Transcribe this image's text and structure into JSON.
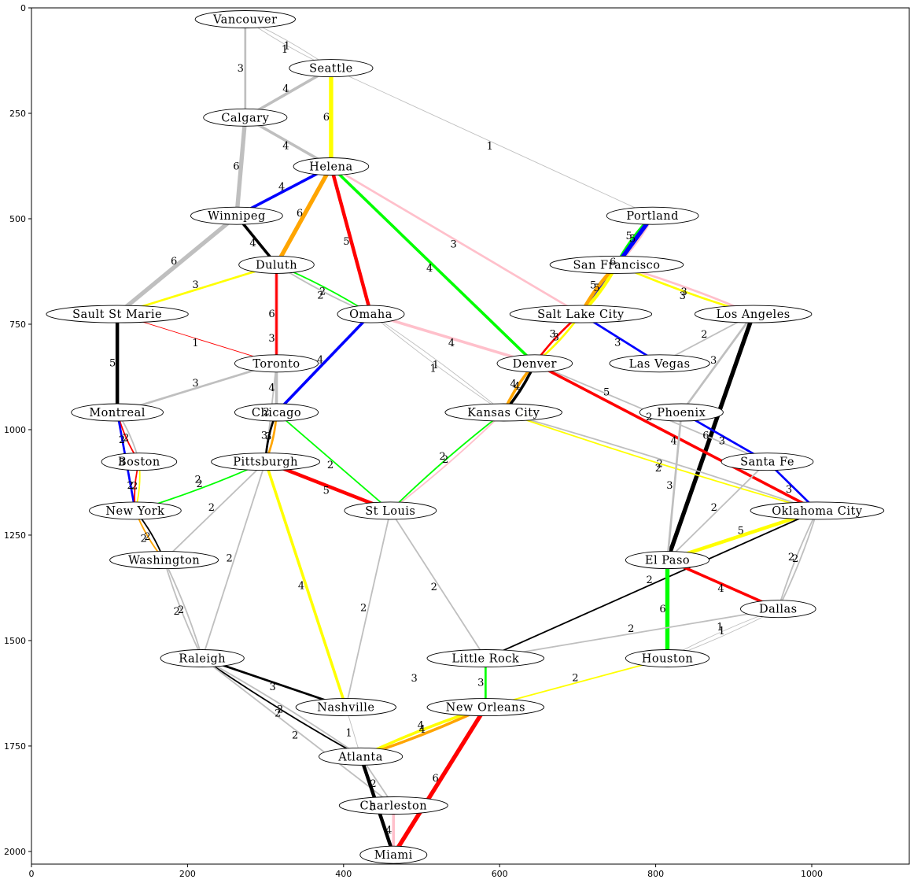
{
  "axes": {
    "xlim": [
      0,
      1125
    ],
    "ylim": [
      2030,
      0
    ],
    "xticks": [
      0,
      200,
      400,
      600,
      800,
      1000
    ],
    "yticks": [
      0,
      250,
      500,
      750,
      1000,
      1250,
      1500,
      1750,
      2000
    ]
  },
  "colors": {
    "gray": "#bfbfbf",
    "yellow": "#ffff00",
    "blue": "#0000ff",
    "orange": "#ffa500",
    "red": "#ff0000",
    "green": "#00ff00",
    "pink": "#ffc0cb",
    "black": "#000000"
  },
  "cities": [
    {
      "name": "Vancouver",
      "x": 274,
      "y": 27
    },
    {
      "name": "Seattle",
      "x": 384,
      "y": 143
    },
    {
      "name": "Calgary",
      "x": 274,
      "y": 260
    },
    {
      "name": "Helena",
      "x": 384,
      "y": 376
    },
    {
      "name": "Portland",
      "x": 796,
      "y": 493
    },
    {
      "name": "Winnipeg",
      "x": 263,
      "y": 493
    },
    {
      "name": "Duluth",
      "x": 314,
      "y": 609
    },
    {
      "name": "San Francisco",
      "x": 750,
      "y": 609
    },
    {
      "name": "Sault St Marie",
      "x": 110,
      "y": 726
    },
    {
      "name": "Omaha",
      "x": 435,
      "y": 726
    },
    {
      "name": "Salt Lake City",
      "x": 704,
      "y": 726
    },
    {
      "name": "Los Angeles",
      "x": 925,
      "y": 726
    },
    {
      "name": "Toronto",
      "x": 314,
      "y": 843
    },
    {
      "name": "Denver",
      "x": 645,
      "y": 843
    },
    {
      "name": "Las Vegas",
      "x": 805,
      "y": 843
    },
    {
      "name": "Montreal",
      "x": 110,
      "y": 959
    },
    {
      "name": "Chicago",
      "x": 314,
      "y": 959
    },
    {
      "name": "Kansas City",
      "x": 605,
      "y": 959
    },
    {
      "name": "Phoenix",
      "x": 833,
      "y": 959
    },
    {
      "name": "Boston",
      "x": 138,
      "y": 1076
    },
    {
      "name": "Pittsburgh",
      "x": 300,
      "y": 1076
    },
    {
      "name": "Santa Fe",
      "x": 943,
      "y": 1076
    },
    {
      "name": "New York",
      "x": 133,
      "y": 1192
    },
    {
      "name": "St Louis",
      "x": 460,
      "y": 1192
    },
    {
      "name": "Oklahoma City",
      "x": 1007,
      "y": 1192
    },
    {
      "name": "Washington",
      "x": 170,
      "y": 1309
    },
    {
      "name": "El Paso",
      "x": 815,
      "y": 1309
    },
    {
      "name": "Dallas",
      "x": 957,
      "y": 1425
    },
    {
      "name": "Raleigh",
      "x": 219,
      "y": 1542
    },
    {
      "name": "Little Rock",
      "x": 582,
      "y": 1542
    },
    {
      "name": "Houston",
      "x": 815,
      "y": 1542
    },
    {
      "name": "Nashville",
      "x": 403,
      "y": 1658
    },
    {
      "name": "New Orleans",
      "x": 582,
      "y": 1658
    },
    {
      "name": "Atlanta",
      "x": 422,
      "y": 1775
    },
    {
      "name": "Charleston",
      "x": 464,
      "y": 1891
    },
    {
      "name": "Miami",
      "x": 464,
      "y": 2008
    }
  ],
  "routes": [
    {
      "from": "Vancouver",
      "to": "Seattle",
      "color": "gray",
      "weight": "1"
    },
    {
      "from": "Vancouver",
      "to": "Seattle",
      "color": "gray",
      "weight": "1"
    },
    {
      "from": "Vancouver",
      "to": "Calgary",
      "color": "gray",
      "weight": "3"
    },
    {
      "from": "Seattle",
      "to": "Calgary",
      "color": "gray",
      "weight": "4"
    },
    {
      "from": "Seattle",
      "to": "Helena",
      "color": "yellow",
      "weight": "6"
    },
    {
      "from": "Seattle",
      "to": "Portland",
      "color": "gray",
      "weight": "1"
    },
    {
      "from": "Calgary",
      "to": "Helena",
      "color": "gray",
      "weight": "4"
    },
    {
      "from": "Calgary",
      "to": "Winnipeg",
      "color": "gray",
      "weight": "6"
    },
    {
      "from": "Helena",
      "to": "Winnipeg",
      "color": "blue",
      "weight": "4"
    },
    {
      "from": "Helena",
      "to": "Duluth",
      "color": "orange",
      "weight": "6"
    },
    {
      "from": "Helena",
      "to": "Omaha",
      "color": "red",
      "weight": "5"
    },
    {
      "from": "Helena",
      "to": "Denver",
      "color": "green",
      "weight": "4"
    },
    {
      "from": "Helena",
      "to": "Salt Lake City",
      "color": "pink",
      "weight": "3"
    },
    {
      "from": "Winnipeg",
      "to": "Duluth",
      "color": "black",
      "weight": "4"
    },
    {
      "from": "Winnipeg",
      "to": "Sault St Marie",
      "color": "gray",
      "weight": "6"
    },
    {
      "from": "Duluth",
      "to": "Sault St Marie",
      "color": "yellow",
      "weight": "3"
    },
    {
      "from": "Duluth",
      "to": "Toronto",
      "color": "pink",
      "weight": "6"
    },
    {
      "from": "Duluth",
      "to": "Omaha",
      "color": "green",
      "weight": "2"
    },
    {
      "from": "Duluth",
      "to": "Omaha",
      "color": "gray",
      "weight": "2"
    },
    {
      "from": "Duluth",
      "to": "Chicago",
      "color": "red",
      "weight": "3"
    },
    {
      "from": "Portland",
      "to": "San Francisco",
      "color": "pink",
      "weight": "5"
    },
    {
      "from": "Portland",
      "to": "San Francisco",
      "color": "green",
      "weight": "5"
    },
    {
      "from": "Portland",
      "to": "Salt Lake City",
      "color": "blue",
      "weight": "6"
    },
    {
      "from": "San Francisco",
      "to": "Salt Lake City",
      "color": "yellow",
      "weight": "5"
    },
    {
      "from": "San Francisco",
      "to": "Salt Lake City",
      "color": "orange",
      "weight": "5"
    },
    {
      "from": "San Francisco",
      "to": "Los Angeles",
      "color": "pink",
      "weight": "3"
    },
    {
      "from": "San Francisco",
      "to": "Los Angeles",
      "color": "yellow",
      "weight": "3"
    },
    {
      "from": "Sault St Marie",
      "to": "Toronto",
      "color": "red",
      "weight": "1"
    },
    {
      "from": "Sault St Marie",
      "to": "Montreal",
      "color": "black",
      "weight": "5"
    },
    {
      "from": "Omaha",
      "to": "Chicago",
      "color": "blue",
      "weight": "4"
    },
    {
      "from": "Omaha",
      "to": "Denver",
      "color": "pink",
      "weight": "4"
    },
    {
      "from": "Omaha",
      "to": "Kansas City",
      "color": "gray",
      "weight": "1"
    },
    {
      "from": "Omaha",
      "to": "Kansas City",
      "color": "gray",
      "weight": "1"
    },
    {
      "from": "Salt Lake City",
      "to": "Denver",
      "color": "yellow",
      "weight": "3"
    },
    {
      "from": "Salt Lake City",
      "to": "Denver",
      "color": "red",
      "weight": "3"
    },
    {
      "from": "Salt Lake City",
      "to": "Las Vegas",
      "color": "blue",
      "weight": "3"
    },
    {
      "from": "Los Angeles",
      "to": "Las Vegas",
      "color": "gray",
      "weight": "2"
    },
    {
      "from": "Los Angeles",
      "to": "Phoenix",
      "color": "gray",
      "weight": "3"
    },
    {
      "from": "Los Angeles",
      "to": "El Paso",
      "color": "black",
      "weight": "6"
    },
    {
      "from": "Toronto",
      "to": "Montreal",
      "color": "gray",
      "weight": "3"
    },
    {
      "from": "Toronto",
      "to": "Chicago",
      "color": "gray",
      "weight": "4"
    },
    {
      "from": "Toronto",
      "to": "Pittsburgh",
      "color": "gray",
      "weight": "2"
    },
    {
      "from": "Denver",
      "to": "Kansas City",
      "color": "black",
      "weight": "4"
    },
    {
      "from": "Denver",
      "to": "Kansas City",
      "color": "orange",
      "weight": "4"
    },
    {
      "from": "Denver",
      "to": "Phoenix",
      "color": "white",
      "weight": "5"
    },
    {
      "from": "Denver",
      "to": "Santa Fe",
      "color": "gray",
      "weight": "2"
    },
    {
      "from": "Denver",
      "to": "Oklahoma City",
      "color": "red",
      "weight": "4"
    },
    {
      "from": "Montreal",
      "to": "Boston",
      "color": "gray",
      "weight": "2"
    },
    {
      "from": "Montreal",
      "to": "Boston",
      "color": "red",
      "weight": "2"
    },
    {
      "from": "Montreal",
      "to": "New York",
      "color": "blue",
      "weight": "3"
    },
    {
      "from": "Chicago",
      "to": "Pittsburgh",
      "color": "orange",
      "weight": "3"
    },
    {
      "from": "Chicago",
      "to": "Pittsburgh",
      "color": "black",
      "weight": "3"
    },
    {
      "from": "Chicago",
      "to": "St Louis",
      "color": "green",
      "weight": "2"
    },
    {
      "from": "Kansas City",
      "to": "St Louis",
      "color": "pink",
      "weight": "2"
    },
    {
      "from": "Kansas City",
      "to": "St Louis",
      "color": "green",
      "weight": "2"
    },
    {
      "from": "Kansas City",
      "to": "Oklahoma City",
      "color": "gray",
      "weight": "2"
    },
    {
      "from": "Kansas City",
      "to": "Oklahoma City",
      "color": "yellow",
      "weight": "2"
    },
    {
      "from": "Phoenix",
      "to": "Santa Fe",
      "color": "blue",
      "weight": "3"
    },
    {
      "from": "Phoenix",
      "to": "El Paso",
      "color": "gray",
      "weight": "3"
    },
    {
      "from": "Boston",
      "to": "New York",
      "color": "yellow",
      "weight": "2"
    },
    {
      "from": "Boston",
      "to": "New York",
      "color": "red",
      "weight": "2"
    },
    {
      "from": "Pittsburgh",
      "to": "New York",
      "color": "green",
      "weight": "2"
    },
    {
      "from": "Pittsburgh",
      "to": "New York",
      "color": "white",
      "weight": "2"
    },
    {
      "from": "Pittsburgh",
      "to": "Washington",
      "color": "gray",
      "weight": "2"
    },
    {
      "from": "Pittsburgh",
      "to": "St Louis",
      "color": "red",
      "weight": "5"
    },
    {
      "from": "Pittsburgh",
      "to": "Raleigh",
      "color": "gray",
      "weight": "2"
    },
    {
      "from": "Pittsburgh",
      "to": "Nashville",
      "color": "yellow",
      "weight": "4"
    },
    {
      "from": "Santa Fe",
      "to": "Oklahoma City",
      "color": "blue",
      "weight": "3"
    },
    {
      "from": "Santa Fe",
      "to": "El Paso",
      "color": "gray",
      "weight": "2"
    },
    {
      "from": "New York",
      "to": "Washington",
      "color": "black",
      "weight": "2"
    },
    {
      "from": "New York",
      "to": "Washington",
      "color": "orange",
      "weight": "2"
    },
    {
      "from": "St Louis",
      "to": "Nashville",
      "color": "gray",
      "weight": "2"
    },
    {
      "from": "St Louis",
      "to": "Little Rock",
      "color": "gray",
      "weight": "2"
    },
    {
      "from": "Oklahoma City",
      "to": "El Paso",
      "color": "yellow",
      "weight": "5"
    },
    {
      "from": "Oklahoma City",
      "to": "Dallas",
      "color": "gray",
      "weight": "2"
    },
    {
      "from": "Oklahoma City",
      "to": "Dallas",
      "color": "gray",
      "weight": "2"
    },
    {
      "from": "Oklahoma City",
      "to": "Little Rock",
      "color": "black",
      "weight": "2"
    },
    {
      "from": "Washington",
      "to": "Raleigh",
      "color": "gray",
      "weight": "2"
    },
    {
      "from": "Washington",
      "to": "Raleigh",
      "color": "gray",
      "weight": "2"
    },
    {
      "from": "El Paso",
      "to": "Dallas",
      "color": "red",
      "weight": "4"
    },
    {
      "from": "El Paso",
      "to": "Houston",
      "color": "green",
      "weight": "6"
    },
    {
      "from": "Dallas",
      "to": "Little Rock",
      "color": "gray",
      "weight": "2"
    },
    {
      "from": "Dallas",
      "to": "Houston",
      "color": "gray",
      "weight": "1"
    },
    {
      "from": "Dallas",
      "to": "Houston",
      "color": "gray",
      "weight": "1"
    },
    {
      "from": "Raleigh",
      "to": "Nashville",
      "color": "black",
      "weight": "3"
    },
    {
      "from": "Raleigh",
      "to": "Atlanta",
      "color": "gray",
      "weight": "2"
    },
    {
      "from": "Raleigh",
      "to": "Atlanta",
      "color": "black",
      "weight": "2"
    },
    {
      "from": "Raleigh",
      "to": "Charleston",
      "color": "gray",
      "weight": "2"
    },
    {
      "from": "Little Rock",
      "to": "Nashville",
      "color": "white",
      "weight": "3"
    },
    {
      "from": "Little Rock",
      "to": "New Orleans",
      "color": "green",
      "weight": "3"
    },
    {
      "from": "Houston",
      "to": "New Orleans",
      "color": "yellow",
      "weight": "2"
    },
    {
      "from": "Nashville",
      "to": "Atlanta",
      "color": "gray",
      "weight": "1"
    },
    {
      "from": "New Orleans",
      "to": "Atlanta",
      "color": "orange",
      "weight": "4"
    },
    {
      "from": "New Orleans",
      "to": "Atlanta",
      "color": "yellow",
      "weight": "4"
    },
    {
      "from": "New Orleans",
      "to": "Miami",
      "color": "red",
      "weight": "6"
    },
    {
      "from": "Atlanta",
      "to": "Charleston",
      "color": "gray",
      "weight": "2"
    },
    {
      "from": "Atlanta",
      "to": "Miami",
      "color": "black",
      "weight": "5"
    },
    {
      "from": "Charleston",
      "to": "Miami",
      "color": "pink",
      "weight": "4"
    }
  ]
}
